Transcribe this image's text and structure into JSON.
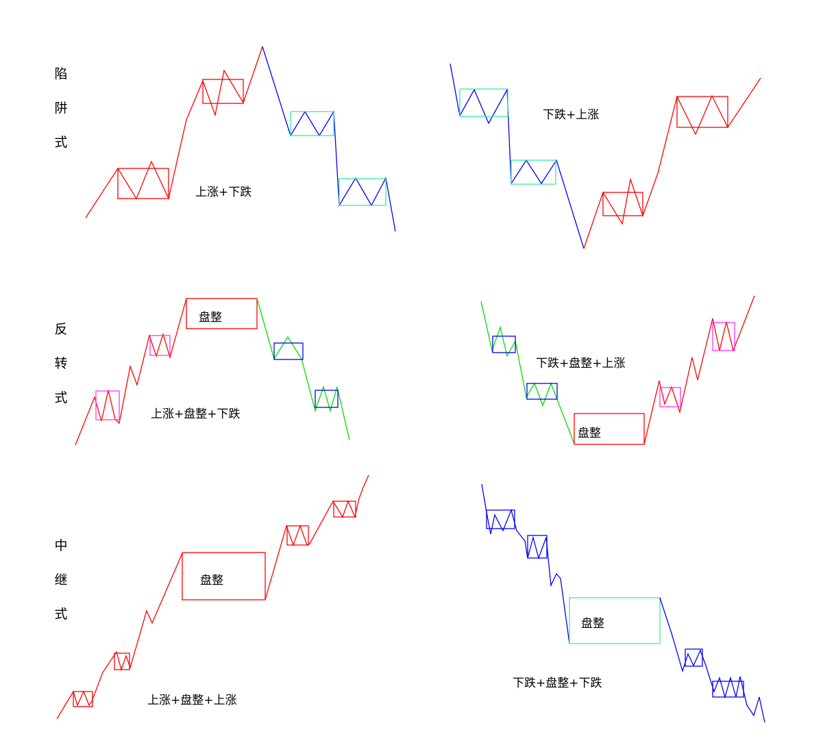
{
  "row_labels": [
    [
      "陷",
      "阱",
      "式"
    ],
    [
      "反",
      "转",
      "式"
    ],
    [
      "中",
      "继",
      "式"
    ]
  ],
  "panel_captions": {
    "trap_left": "上涨+下跌",
    "trap_right": "下跌+上涨",
    "reversal_left": "上涨+盘整+下跌",
    "reversal_right": "下跌+盘整+上涨",
    "relay_left": "上涨+盘整+上涨",
    "relay_right": "下跌+盘整+下跌"
  },
  "consolidation_label": "盘整",
  "colors": {
    "red": "#ff0000",
    "blue": "#0000ff",
    "green": "#00dd00",
    "teal": "#33ee99",
    "magenta": "#ff33ff",
    "text": "#000000"
  }
}
